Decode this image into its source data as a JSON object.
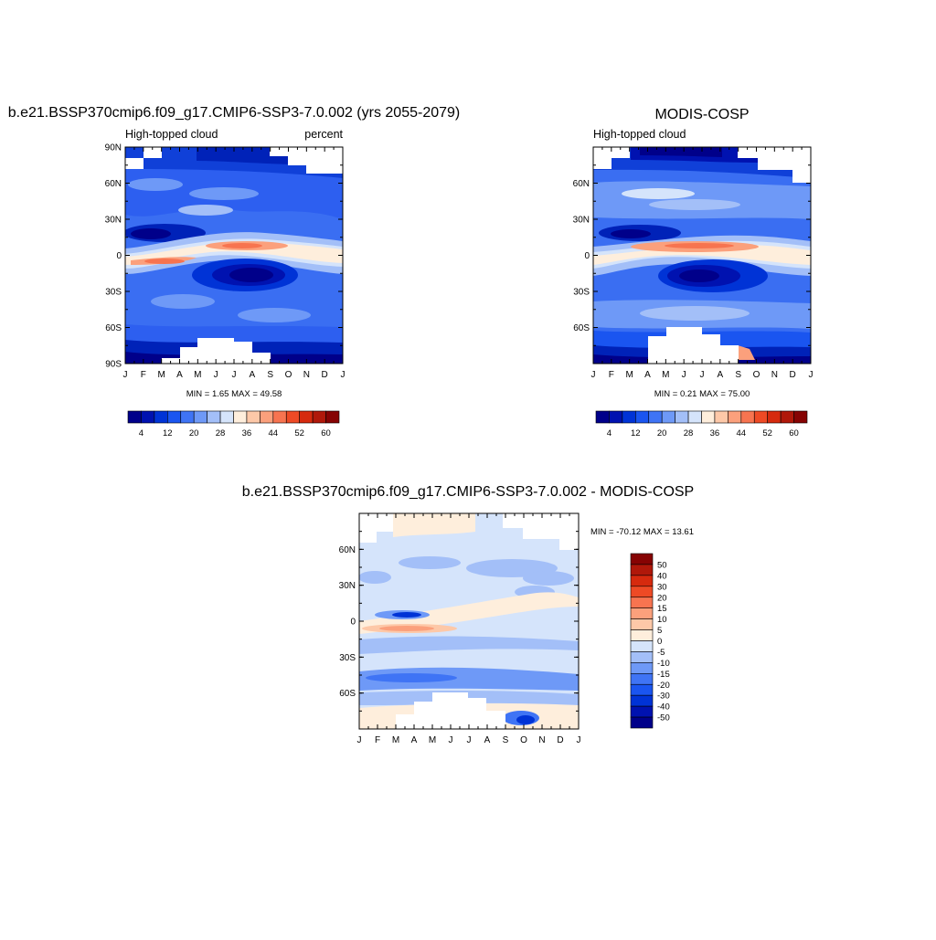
{
  "colors": {
    "panel_scale": [
      "#00008a",
      "#0012b0",
      "#0033d6",
      "#1a55f0",
      "#3f74f5",
      "#6e99f7",
      "#a3bff8",
      "#d5e4fb",
      "#feeedc",
      "#fdc8a8",
      "#fba07c",
      "#f77450",
      "#ee4a25",
      "#d62a0e",
      "#b0180a",
      "#860303"
    ],
    "diff_scale": [
      "#00008a",
      "#0012b0",
      "#0033d6",
      "#1a55f0",
      "#3f74f5",
      "#6e99f7",
      "#a3bff8",
      "#d5e4fb",
      "#feeedc",
      "#fdc8a8",
      "#fba07c",
      "#f77450",
      "#ee4a25",
      "#d62a0e",
      "#b0180a",
      "#860303"
    ]
  },
  "chart_data": [
    {
      "type": "heatmap",
      "title": "b.e21.BSSP370cmip6.f09_g17.CMIP6-SSP3-7.0.002 (yrs 2055-2079)",
      "left_label": "High-topped cloud",
      "right_label": "percent",
      "x_ticks": [
        "J",
        "F",
        "M",
        "A",
        "M",
        "J",
        "J",
        "A",
        "S",
        "O",
        "N",
        "D",
        "J"
      ],
      "y_ticks": [
        "90N",
        "60N",
        "30N",
        "0",
        "30S",
        "60S",
        "90S"
      ],
      "stats": "MIN =   1.65 MAX =  49.58",
      "colorbar_labels": [
        "4",
        "12",
        "20",
        "28",
        "36",
        "44",
        "52",
        "60"
      ]
    },
    {
      "type": "heatmap",
      "title": "MODIS-COSP",
      "left_label": "High-topped cloud",
      "right_label": "",
      "x_ticks": [
        "J",
        "F",
        "M",
        "A",
        "M",
        "J",
        "J",
        "A",
        "S",
        "O",
        "N",
        "D",
        "J"
      ],
      "y_ticks": [
        "60N",
        "30N",
        "0",
        "30S",
        "60S"
      ],
      "stats": "MIN =   0.21 MAX =  75.00",
      "colorbar_labels": [
        "4",
        "12",
        "20",
        "28",
        "36",
        "44",
        "52",
        "60"
      ]
    },
    {
      "type": "heatmap",
      "title": "b.e21.BSSP370cmip6.f09_g17.CMIP6-SSP3-7.0.002 - MODIS-COSP",
      "x_ticks": [
        "J",
        "F",
        "M",
        "A",
        "M",
        "J",
        "J",
        "A",
        "S",
        "O",
        "N",
        "D",
        "J"
      ],
      "y_ticks": [
        "60N",
        "30N",
        "0",
        "30S",
        "60S"
      ],
      "stats": "MIN = -70.12 MAX =  13.61",
      "colorbar_labels": [
        "50",
        "40",
        "30",
        "20",
        "15",
        "10",
        "5",
        "0",
        "-5",
        "-10",
        "-15",
        "-20",
        "-30",
        "-40",
        "-50"
      ]
    }
  ]
}
